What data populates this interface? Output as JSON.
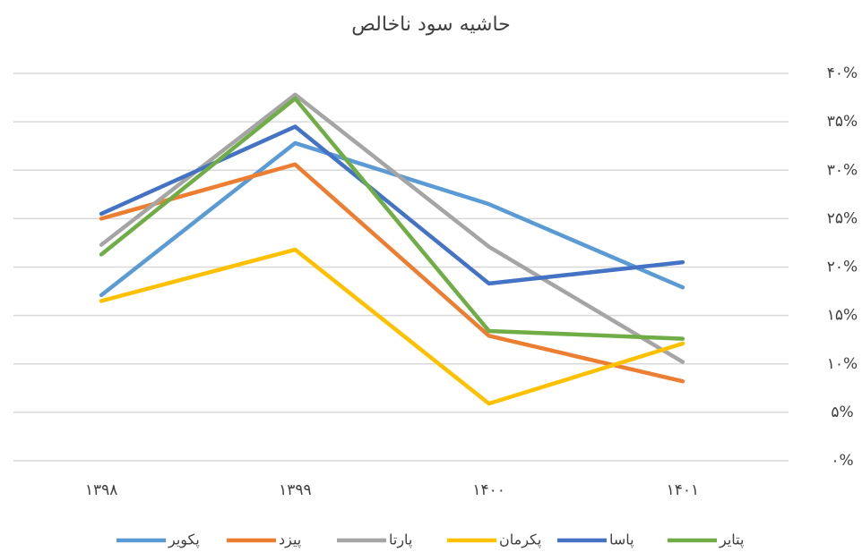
{
  "chart_data": {
    "type": "line",
    "title": "حاشیه سود ناخالص",
    "categories": [
      "۱۳۹۸",
      "۱۳۹۹",
      "۱۴۰۰",
      "۱۴۰۱"
    ],
    "series": [
      {
        "name": "پکویر",
        "color": "#5b9bd5",
        "values": [
          17.1,
          32.8,
          26.5,
          17.9
        ]
      },
      {
        "name": "پیزد",
        "color": "#ed7d31",
        "values": [
          25.0,
          30.6,
          12.9,
          8.2
        ]
      },
      {
        "name": "پارتا",
        "color": "#a5a5a5",
        "values": [
          22.3,
          37.8,
          22.1,
          10.2
        ]
      },
      {
        "name": "پکرمان",
        "color": "#ffc000",
        "values": [
          16.5,
          21.8,
          5.9,
          12.1
        ]
      },
      {
        "name": "پاسا",
        "color": "#4472c4",
        "values": [
          25.5,
          34.5,
          18.3,
          20.5
        ]
      },
      {
        "name": "پتایر",
        "color": "#70ad47",
        "values": [
          21.3,
          37.4,
          13.4,
          12.6
        ]
      }
    ],
    "ylim": [
      0,
      40
    ],
    "yticks": [
      {
        "value": 0,
        "label": "۰%"
      },
      {
        "value": 5,
        "label": "۵%"
      },
      {
        "value": 10,
        "label": "۱۰%"
      },
      {
        "value": 15,
        "label": "۱۵%"
      },
      {
        "value": 20,
        "label": "۲۰%"
      },
      {
        "value": 25,
        "label": "۲۵%"
      },
      {
        "value": 30,
        "label": "۳۰%"
      },
      {
        "value": 35,
        "label": "۳۵%"
      },
      {
        "value": 40,
        "label": "۴۰%"
      }
    ],
    "grid": true,
    "legend": "bottom"
  }
}
